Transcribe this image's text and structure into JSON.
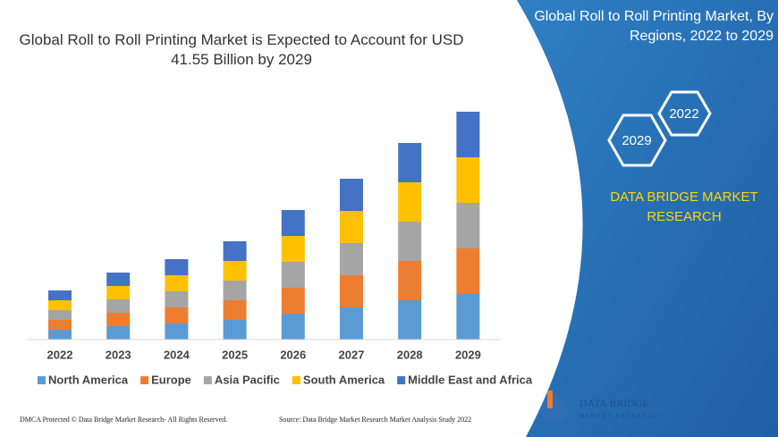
{
  "chart_data": {
    "type": "bar",
    "stacked": true,
    "title": "Global Roll to Roll Printing Market is Expected to Account for USD 41.55 Billion by 2029",
    "categories": [
      "2022",
      "2023",
      "2024",
      "2025",
      "2026",
      "2027",
      "2028",
      "2029"
    ],
    "series": [
      {
        "name": "North America",
        "color": "#5b9bd5",
        "values": [
          11,
          15,
          18,
          22,
          29,
          36,
          44,
          51
        ]
      },
      {
        "name": "Europe",
        "color": "#ed7d31",
        "values": [
          11,
          15,
          18,
          22,
          29,
          36,
          44,
          51
        ]
      },
      {
        "name": "Asia Pacific",
        "color": "#a5a5a5",
        "values": [
          11,
          15,
          18,
          22,
          29,
          36,
          44,
          51
        ]
      },
      {
        "name": "South America",
        "color": "#ffc000",
        "values": [
          11,
          15,
          18,
          22,
          29,
          36,
          44,
          51
        ]
      },
      {
        "name": "Middle East and Africa",
        "color": "#4472c4",
        "values": [
          11,
          15,
          18,
          22,
          29,
          36,
          44,
          51
        ]
      }
    ],
    "legend": "bottom"
  },
  "panel": {
    "title": "Global Roll to Roll Printing Market, By Regions, 2022 to 2029",
    "hexagons": [
      "2029",
      "2022"
    ],
    "brand": "DATA BRIDGE MARKET RESEARCH"
  },
  "footer": {
    "notice": "DMCA Protected © Data Bridge Market Research- All Rights Reserved.",
    "source": "Source: Data Bridge Market Research Market Analysis Study 2022"
  },
  "logo": {
    "name": "DATA BRIDGE",
    "tagline": "MARKET RESEARCH"
  }
}
